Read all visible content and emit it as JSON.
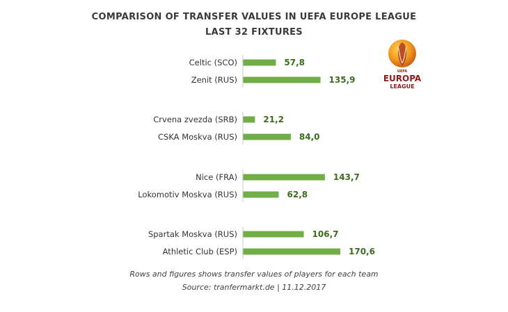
{
  "chart_data": {
    "type": "bar",
    "orientation": "horizontal",
    "title": "COMPARISON OF TRANSFER VALUES IN UEFA EUROPE LEAGUE",
    "subtitle": "LAST 32 FIXTURES",
    "categories": [
      "Celtic (SCO)",
      "Zenit (RUS)",
      "Crvena zvezda (SRB)",
      "CSKA Moskva (RUS)",
      "Nice (FRA)",
      "Lokomotiv Moskva (RUS)",
      "Spartak Moskva (RUS)",
      "Athletic Club (ESP)"
    ],
    "values": [
      57.8,
      135.9,
      21.2,
      84.0,
      143.7,
      62.8,
      106.7,
      170.6
    ],
    "value_labels": [
      "57,8",
      "135,9",
      "21,2",
      "84,0",
      "143,7",
      "62,8",
      "106,7",
      "170,6"
    ],
    "groups": [
      [
        0,
        1
      ],
      [
        2,
        3
      ],
      [
        4,
        5
      ],
      [
        6,
        7
      ]
    ],
    "bar_color": "#70ad47",
    "label_color": "#3d6b1f",
    "xlim": [
      0,
      180
    ],
    "grid": false,
    "legend": "none"
  },
  "footnote": {
    "line1": "Rows and figures shows transfer values of players for each team",
    "line2": "Source: tranfermarkt.de | 11.12.2017"
  },
  "logo": {
    "icon": "europa-league-logo",
    "top_text": "UEFA",
    "word1": "EUROPA",
    "word2": "LEAGUE"
  }
}
